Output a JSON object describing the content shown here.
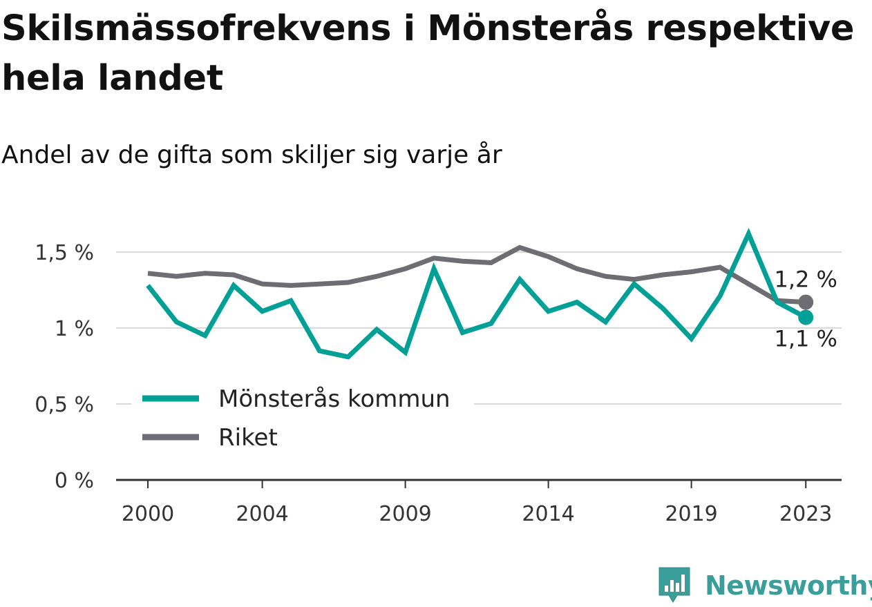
{
  "header": {
    "title": "Skilsmässofrekvens i Mönsterås respektive hela landet",
    "subtitle": "Andel av de gifta som skiljer sig varje år"
  },
  "brand": {
    "name": "Newsworthy",
    "icon": "bar-chart-pin-icon",
    "color": "#3a9e9b"
  },
  "chart_data": {
    "type": "line",
    "title": "Skilsmässofrekvens i Mönsterås respektive hela landet",
    "subtitle": "Andel av de gifta som skiljer sig varje år",
    "xlabel": "",
    "ylabel": "",
    "x": [
      2000,
      2001,
      2002,
      2003,
      2004,
      2005,
      2006,
      2007,
      2008,
      2009,
      2010,
      2011,
      2012,
      2013,
      2014,
      2015,
      2016,
      2017,
      2018,
      2019,
      2020,
      2021,
      2022,
      2023
    ],
    "xlim": [
      1999,
      2024
    ],
    "ylim": [
      0,
      1.6
    ],
    "x_ticks": [
      2000,
      2004,
      2009,
      2014,
      2019,
      2023
    ],
    "x_tick_labels": [
      "2000",
      "2004",
      "2009",
      "2014",
      "2019",
      "2023"
    ],
    "y_ticks": [
      0,
      0.5,
      1,
      1.5
    ],
    "y_tick_labels": [
      "0 %",
      "0,5 %",
      "1 %",
      "1,5 %"
    ],
    "grid": true,
    "legend_position": "bottom-left",
    "series": [
      {
        "name": "Mönsterås kommun",
        "color": "#00a096",
        "values": [
          1.28,
          1.04,
          0.95,
          1.28,
          1.11,
          1.18,
          0.85,
          0.81,
          0.99,
          0.84,
          1.39,
          0.97,
          1.03,
          1.32,
          1.11,
          1.17,
          1.04,
          1.29,
          1.13,
          0.93,
          1.21,
          1.62,
          1.17,
          1.07
        ],
        "end_label": "1,1 %",
        "end_label_position": "below"
      },
      {
        "name": "Riket",
        "color": "#6e6d73",
        "values": [
          1.36,
          1.34,
          1.36,
          1.35,
          1.29,
          1.28,
          1.29,
          1.3,
          1.34,
          1.39,
          1.46,
          1.44,
          1.43,
          1.53,
          1.47,
          1.39,
          1.34,
          1.32,
          1.35,
          1.37,
          1.4,
          1.29,
          1.18,
          1.17
        ],
        "end_label": "1,2 %",
        "end_label_position": "above"
      }
    ]
  }
}
